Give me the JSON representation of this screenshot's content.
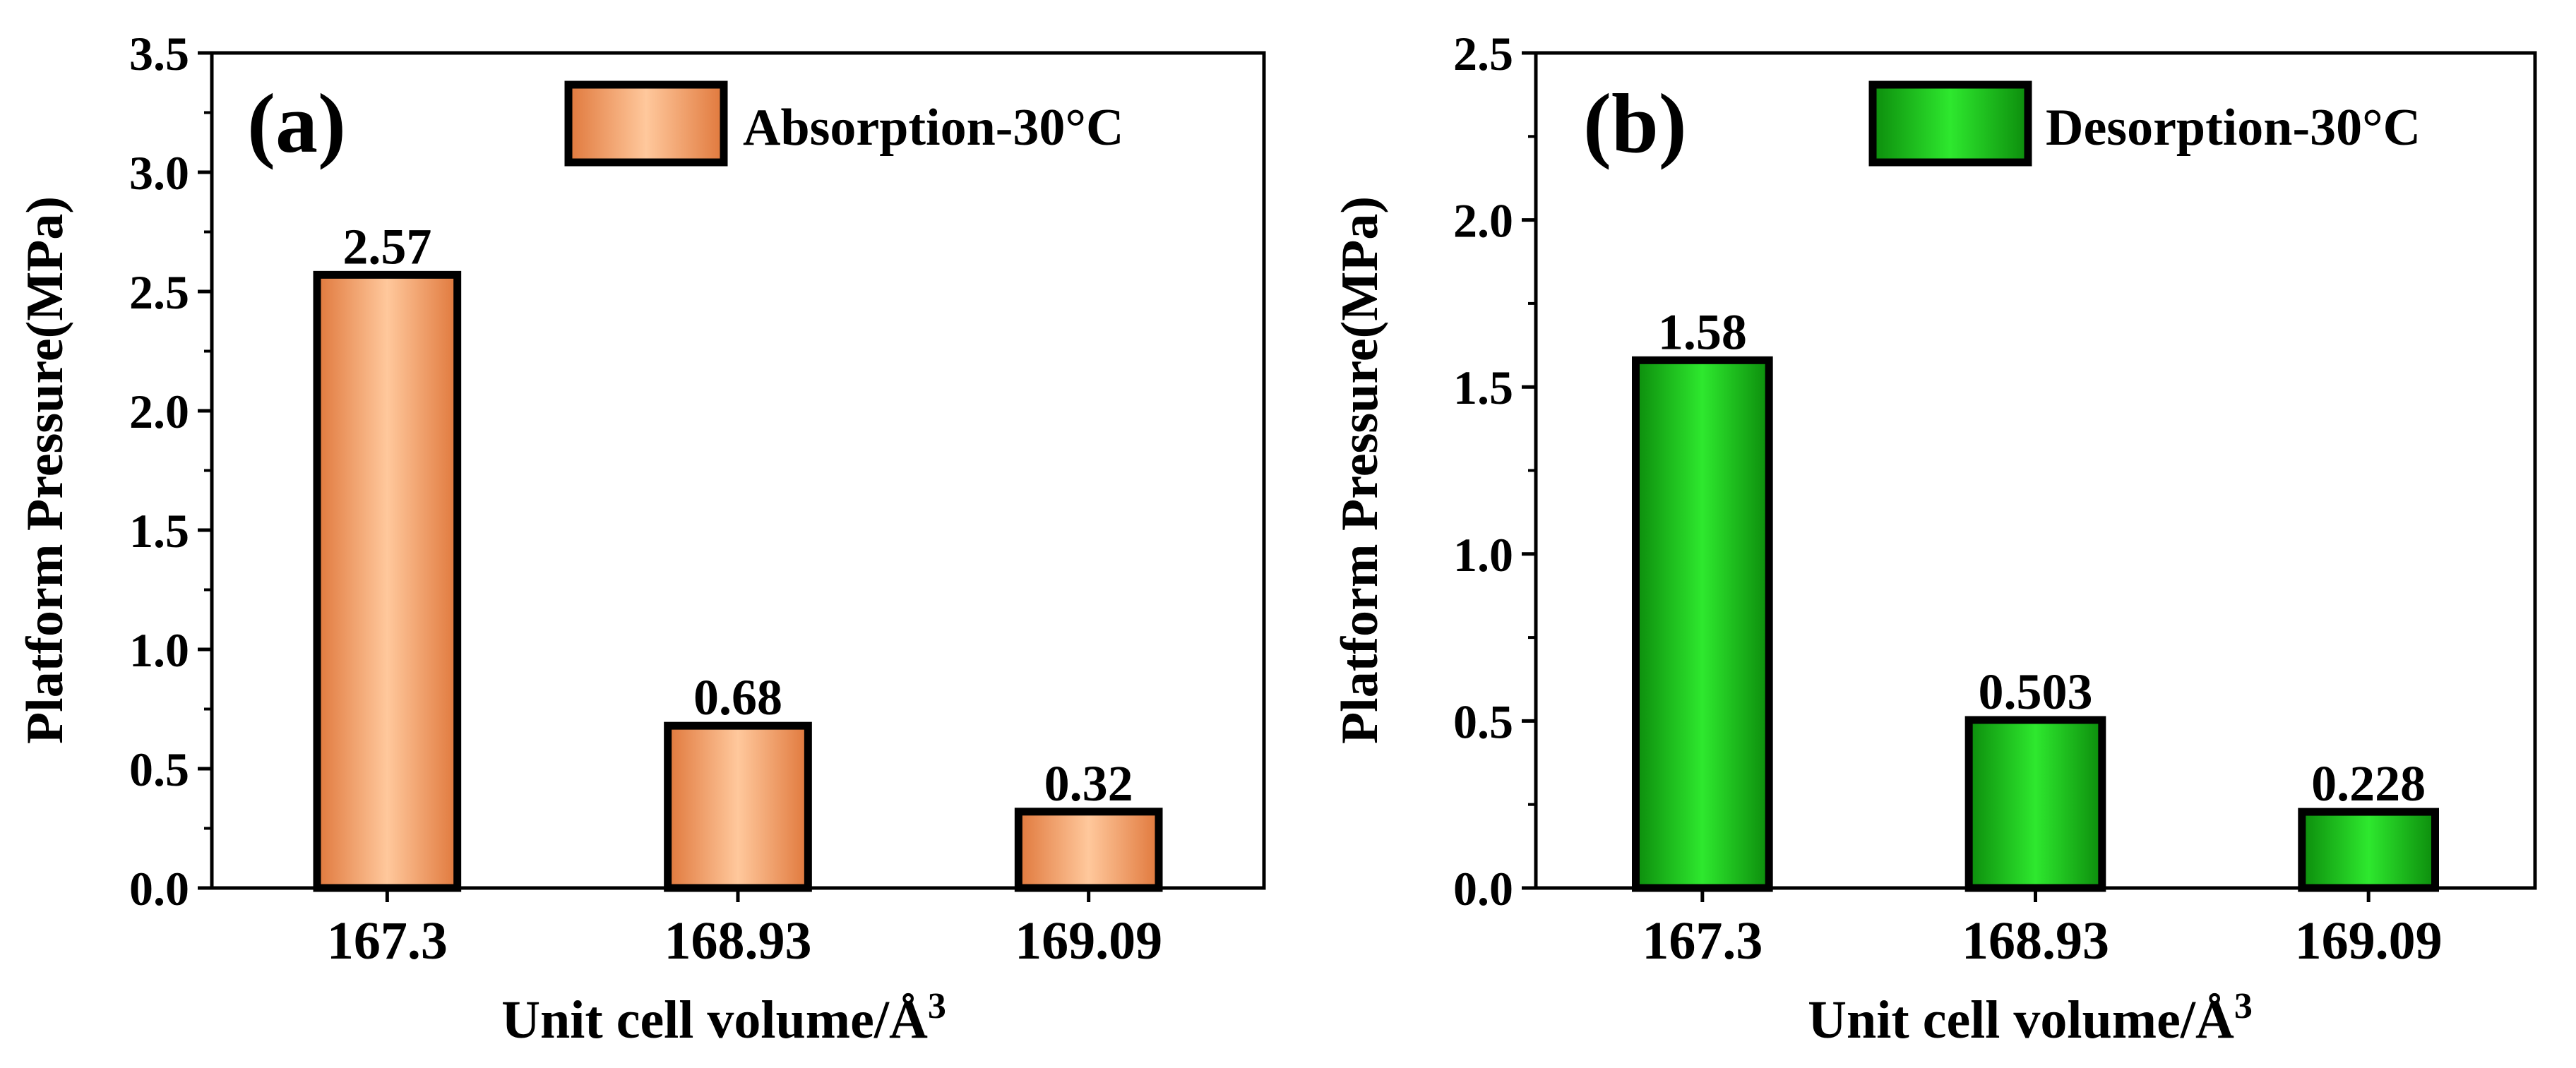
{
  "chart_data": [
    {
      "panel": "(a)",
      "type": "bar",
      "categories": [
        "167.3",
        "168.93",
        "169.09"
      ],
      "values": [
        2.57,
        0.68,
        0.32
      ],
      "value_labels": [
        "2.57",
        "0.68",
        "0.32"
      ],
      "legend": "Absorption-30°C",
      "xlabel": "Unit cell volume/Å",
      "xlabel_sup": "3",
      "ylabel": "Platform Pressure(MPa)",
      "ylim": [
        0,
        3.5
      ],
      "yticks": [
        0.0,
        0.5,
        1.0,
        1.5,
        2.0,
        2.5,
        3.0,
        3.5
      ],
      "ytick_labels": [
        "0.0",
        "0.5",
        "1.0",
        "1.5",
        "2.0",
        "2.5",
        "3.0",
        "3.5"
      ],
      "colors": {
        "edge": "#e0783c",
        "center": "#ffc89c",
        "legend_edge": "#f0823c"
      }
    },
    {
      "panel": "(b)",
      "type": "bar",
      "categories": [
        "167.3",
        "168.93",
        "169.09"
      ],
      "values": [
        1.58,
        0.503,
        0.228
      ],
      "value_labels": [
        "1.58",
        "0.503",
        "0.228"
      ],
      "legend": "Desorption-30°C",
      "xlabel": "Unit cell volume/Å",
      "xlabel_sup": "3",
      "ylabel": "Platform Pressure(MPa)",
      "ylim": [
        0,
        2.5
      ],
      "yticks": [
        0.0,
        0.5,
        1.0,
        1.5,
        2.0,
        2.5
      ],
      "ytick_labels": [
        "0.0",
        "0.5",
        "1.0",
        "1.5",
        "2.0",
        "2.5"
      ],
      "colors": {
        "edge": "#0c8c0c",
        "center": "#2ee82e",
        "legend_edge": "#0e9a0e"
      }
    }
  ]
}
